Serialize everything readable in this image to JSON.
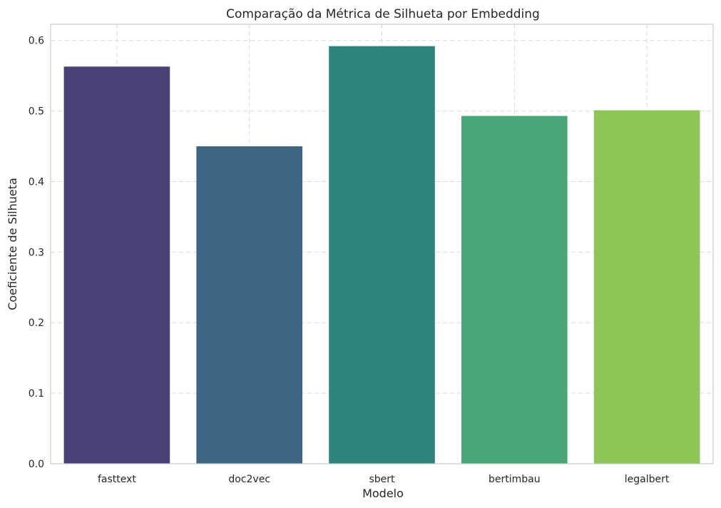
{
  "chart_data": {
    "type": "bar",
    "title": "Comparação da Métrica de Silhueta por Embedding",
    "xlabel": "Modelo",
    "ylabel": "Coeficiente de Silhueta",
    "categories": [
      "fasttext",
      "doc2vec",
      "sbert",
      "bertimbau",
      "legalbert"
    ],
    "values": [
      0.563,
      0.45,
      0.592,
      0.493,
      0.501
    ],
    "colors": [
      "#4a4178",
      "#3e6683",
      "#2e847e",
      "#47a777",
      "#8dc556"
    ],
    "ylim": [
      0,
      0.623
    ],
    "yticks": [
      0.0,
      0.1,
      0.2,
      0.3,
      0.4,
      0.5,
      0.6
    ],
    "ytick_labels": [
      "0.0",
      "0.1",
      "0.2",
      "0.3",
      "0.4",
      "0.5",
      "0.6"
    ],
    "grid": true,
    "legend": "none"
  }
}
